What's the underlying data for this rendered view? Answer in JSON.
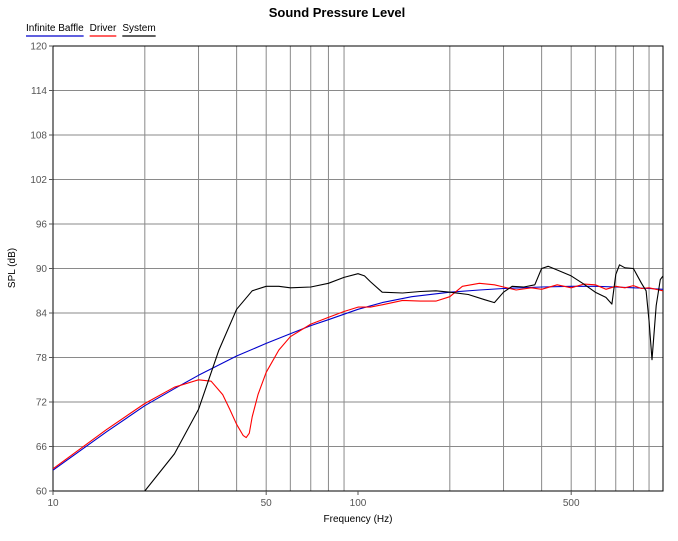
{
  "chart_data": {
    "type": "line",
    "title": "Sound Pressure Level",
    "xlabel": "Frequency (Hz)",
    "ylabel": "SPL (dB)",
    "x_scale": "log",
    "xlim": [
      10,
      1000
    ],
    "ylim": [
      60,
      120
    ],
    "y_ticks": [
      60,
      66,
      72,
      78,
      84,
      90,
      96,
      102,
      108,
      114,
      120
    ],
    "x_tick_labels": [
      {
        "value": 10,
        "label": "10"
      },
      {
        "value": 50,
        "label": "50"
      },
      {
        "value": 100,
        "label": "100"
      },
      {
        "value": 500,
        "label": "500"
      }
    ],
    "grid": true,
    "legend_position": "top-left",
    "series": [
      {
        "name": "Infinite Baffle",
        "color": "#0000cc",
        "x": [
          10,
          15,
          20,
          25,
          30,
          40,
          50,
          60,
          70,
          80,
          100,
          120,
          150,
          200,
          250,
          300,
          400,
          500,
          600,
          700,
          800,
          900,
          1000
        ],
        "y": [
          62.8,
          68.0,
          71.5,
          73.8,
          75.6,
          78.2,
          79.9,
          81.2,
          82.3,
          83.1,
          84.5,
          85.4,
          86.2,
          86.8,
          87.1,
          87.3,
          87.5,
          87.6,
          87.6,
          87.5,
          87.4,
          87.3,
          87.2
        ]
      },
      {
        "name": "Driver",
        "color": "#ff0000",
        "x": [
          10,
          15,
          20,
          25,
          30,
          33,
          36,
          38,
          40,
          42,
          43,
          44,
          45,
          47,
          50,
          55,
          60,
          70,
          80,
          90,
          100,
          110,
          120,
          140,
          160,
          180,
          200,
          220,
          250,
          280,
          300,
          330,
          370,
          400,
          450,
          500,
          550,
          600,
          650,
          700,
          750,
          800,
          850,
          900,
          1000
        ],
        "y": [
          63.0,
          68.3,
          71.8,
          74.0,
          75.0,
          74.8,
          73.0,
          71.0,
          69.0,
          67.5,
          67.2,
          67.8,
          70.0,
          73.0,
          76.0,
          79.0,
          80.8,
          82.5,
          83.4,
          84.2,
          84.8,
          84.8,
          85.1,
          85.7,
          85.6,
          85.6,
          86.2,
          87.6,
          88.0,
          87.8,
          87.5,
          87.1,
          87.4,
          87.2,
          87.8,
          87.4,
          87.9,
          87.8,
          87.2,
          87.6,
          87.4,
          87.7,
          87.3,
          87.4,
          87.0
        ]
      },
      {
        "name": "System",
        "color": "#000000",
        "x": [
          20,
          25,
          30,
          35,
          40,
          45,
          50,
          55,
          60,
          70,
          80,
          90,
          100,
          105,
          110,
          120,
          140,
          160,
          180,
          200,
          230,
          260,
          280,
          300,
          320,
          350,
          380,
          400,
          420,
          450,
          500,
          550,
          600,
          650,
          680,
          700,
          720,
          750,
          800,
          850,
          880,
          900,
          920,
          950,
          980,
          1000
        ],
        "y": [
          60.0,
          65.0,
          71.0,
          79.0,
          84.5,
          87.0,
          87.6,
          87.6,
          87.4,
          87.5,
          88.0,
          88.8,
          89.3,
          89.0,
          88.2,
          86.8,
          86.7,
          86.9,
          87.0,
          86.8,
          86.5,
          85.8,
          85.4,
          86.8,
          87.6,
          87.5,
          87.8,
          90.0,
          90.3,
          89.8,
          89.0,
          87.9,
          86.8,
          86.1,
          85.2,
          89.2,
          90.5,
          90.1,
          90.0,
          88.0,
          87.0,
          83.0,
          77.7,
          85.0,
          88.5,
          89.0
        ]
      }
    ]
  }
}
